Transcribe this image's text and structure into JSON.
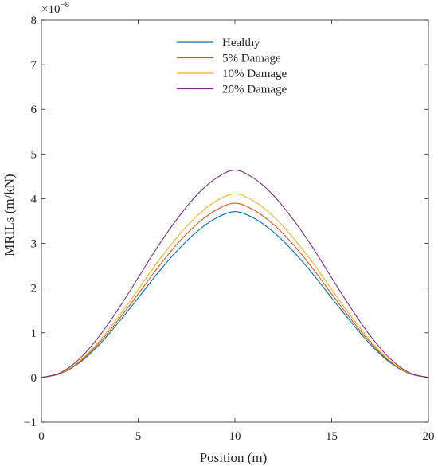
{
  "chart_data": {
    "type": "line",
    "xlabel": "Position (m)",
    "ylabel": "MRILs (m/kN)",
    "y_exponent_label": "×10",
    "y_exponent_power": "−8",
    "xlim": [
      0,
      20
    ],
    "ylim": [
      -1,
      8
    ],
    "xticks": [
      0,
      5,
      10,
      15,
      20
    ],
    "yticks": [
      -1,
      0,
      1,
      2,
      3,
      4,
      5,
      6,
      7,
      8
    ],
    "xtick_labels": [
      "0",
      "5",
      "10",
      "15",
      "20"
    ],
    "ytick_labels": [
      "−1",
      "0",
      "1",
      "2",
      "3",
      "4",
      "5",
      "6",
      "7",
      "8"
    ],
    "grid": false,
    "legend_position": "top-center",
    "x": [
      0,
      1,
      2,
      3,
      4,
      5,
      6,
      7,
      8,
      9,
      10,
      11,
      12,
      13,
      14,
      15,
      16,
      17,
      18,
      19,
      20
    ],
    "series": [
      {
        "name": "Healthy",
        "color": "#0072BD",
        "values": [
          0,
          0.09,
          0.34,
          0.74,
          1.24,
          1.78,
          2.33,
          2.83,
          3.25,
          3.56,
          3.71,
          3.56,
          3.25,
          2.83,
          2.33,
          1.78,
          1.24,
          0.74,
          0.34,
          0.09,
          0
        ]
      },
      {
        "name": "5% Damage",
        "color": "#D95319",
        "values": [
          0,
          0.09,
          0.36,
          0.78,
          1.3,
          1.87,
          2.45,
          2.98,
          3.42,
          3.74,
          3.9,
          3.74,
          3.42,
          2.98,
          2.45,
          1.87,
          1.3,
          0.78,
          0.36,
          0.09,
          0
        ]
      },
      {
        "name": "10% Damage",
        "color": "#EDB120",
        "values": [
          0,
          0.1,
          0.38,
          0.82,
          1.37,
          1.97,
          2.58,
          3.13,
          3.6,
          3.94,
          4.11,
          3.94,
          3.6,
          3.13,
          2.58,
          1.97,
          1.37,
          0.82,
          0.38,
          0.1,
          0
        ]
      },
      {
        "name": "20% Damage",
        "color": "#7E2F8E",
        "values": [
          0,
          0.11,
          0.43,
          0.93,
          1.55,
          2.23,
          2.92,
          3.54,
          4.07,
          4.45,
          4.64,
          4.45,
          4.07,
          3.54,
          2.92,
          2.23,
          1.55,
          0.93,
          0.43,
          0.11,
          0
        ]
      }
    ]
  }
}
